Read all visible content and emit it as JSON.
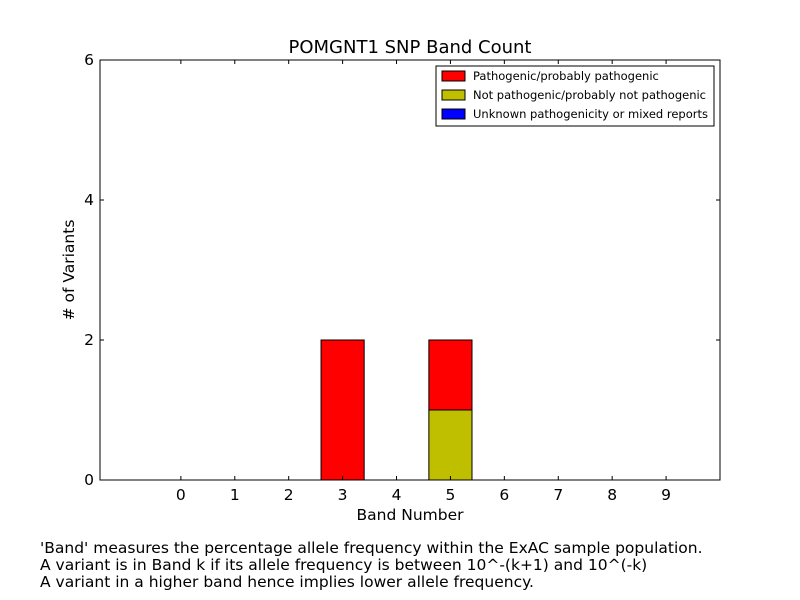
{
  "chart_data": {
    "type": "bar",
    "stacked": true,
    "title": "POMGNT1 SNP Band Count",
    "xlabel": "Band Number",
    "ylabel": "# of Variants",
    "categories": [
      "0",
      "1",
      "2",
      "3",
      "4",
      "5",
      "6",
      "7",
      "8",
      "9"
    ],
    "x": [
      0,
      1,
      2,
      3,
      4,
      5,
      6,
      7,
      8,
      9
    ],
    "xlim": [
      -1.5,
      10
    ],
    "ylim": [
      0,
      6
    ],
    "yticks": [
      0,
      2,
      4,
      6
    ],
    "series": [
      {
        "name": "Not pathogenic/probably not pathogenic",
        "color": "#bfbf00",
        "values": [
          0,
          0,
          0,
          0,
          0,
          1,
          0,
          0,
          0,
          0
        ]
      },
      {
        "name": "Pathogenic/probably pathogenic",
        "color": "#ff0000",
        "values": [
          0,
          0,
          0,
          2,
          0,
          1,
          0,
          0,
          0,
          0
        ]
      },
      {
        "name": "Unknown pathogenicity or mixed reports",
        "color": "#0000ff",
        "values": [
          0,
          0,
          0,
          0,
          0,
          0,
          0,
          0,
          0,
          0
        ]
      }
    ],
    "legend": {
      "position": "top-right",
      "order": [
        "Pathogenic/probably pathogenic",
        "Not pathogenic/probably not pathogenic",
        "Unknown pathogenicity or mixed reports"
      ]
    },
    "grid": false
  },
  "caption": {
    "line1": "'Band' measures the percentage allele frequency within the ExAC sample population.",
    "line2": "A variant is in Band k if its allele frequency is between 10^-(k+1) and 10^(-k)",
    "line3": "A variant in a higher band hence implies lower allele frequency."
  }
}
